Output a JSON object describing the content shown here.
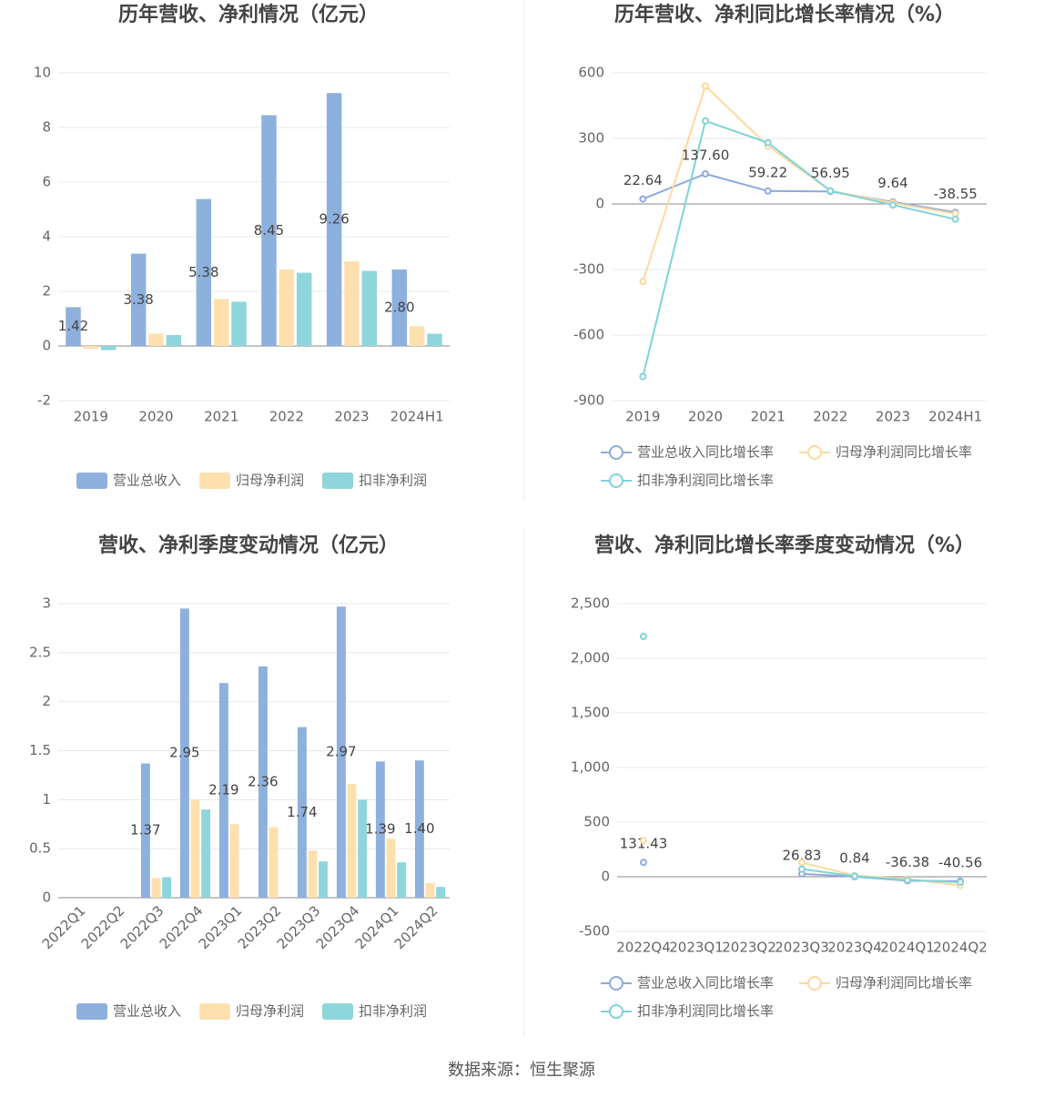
{
  "chart_data": [
    {
      "type": "bar",
      "title": "历年营收、净利情况（亿元）",
      "categories": [
        "2019",
        "2020",
        "2021",
        "2022",
        "2023",
        "2024H1"
      ],
      "ylim": [
        -2,
        10
      ],
      "yticks": [
        -2,
        0,
        2,
        4,
        6,
        8,
        10
      ],
      "grid": true,
      "series": [
        {
          "name": "营业总收入",
          "color": "#8eb0dd",
          "values": [
            1.42,
            3.38,
            5.38,
            8.45,
            9.26,
            2.8
          ],
          "value_labels": [
            "1.42",
            "3.38",
            "5.38",
            "8.45",
            "9.26",
            "2.80"
          ]
        },
        {
          "name": "归母净利润",
          "color": "#fde0ae",
          "values": [
            -0.1,
            0.45,
            1.72,
            2.8,
            3.1,
            0.72
          ]
        },
        {
          "name": "扣非净利润",
          "color": "#8ed6db",
          "values": [
            -0.15,
            0.4,
            1.62,
            2.68,
            2.75,
            0.45
          ]
        }
      ]
    },
    {
      "type": "line",
      "title": "历年营收、净利同比增长率情况（%）",
      "categories": [
        "2019",
        "2020",
        "2021",
        "2022",
        "2023",
        "2024H1"
      ],
      "ylim": [
        -900,
        600
      ],
      "yticks": [
        -900,
        -600,
        -300,
        0,
        300,
        600
      ],
      "grid": true,
      "series": [
        {
          "name": "营业总收入同比增长率",
          "color": "#8eaade",
          "values": [
            22.64,
            137.6,
            59.22,
            56.95,
            9.64,
            -38.55
          ],
          "value_labels": [
            "22.64",
            "137.60",
            "59.22",
            "56.95",
            "9.64",
            "-38.55"
          ]
        },
        {
          "name": "归母净利润同比增长率",
          "color": "#fdd99e",
          "values": [
            -355,
            540,
            265,
            60,
            5,
            -45
          ]
        },
        {
          "name": "扣非净利润同比增长率",
          "color": "#7fd3d8",
          "values": [
            -790,
            380,
            280,
            60,
            -5,
            -70
          ]
        }
      ]
    },
    {
      "type": "bar",
      "title": "营收、净利季度变动情况（亿元）",
      "categories": [
        "2022Q1",
        "2022Q2",
        "2022Q3",
        "2022Q4",
        "2023Q1",
        "2023Q2",
        "2023Q3",
        "2023Q4",
        "2024Q1",
        "2024Q2"
      ],
      "ylim": [
        0,
        3
      ],
      "yticks": [
        0,
        0.5,
        1,
        1.5,
        2,
        2.5,
        3
      ],
      "grid": true,
      "series": [
        {
          "name": "营业总收入",
          "color": "#8eb0dd",
          "values": [
            null,
            null,
            1.37,
            2.95,
            2.19,
            2.36,
            1.74,
            2.97,
            1.39,
            1.4
          ],
          "value_labels": [
            null,
            null,
            "1.37",
            "2.95",
            "2.19",
            "2.36",
            "1.74",
            "2.97",
            "1.39",
            "1.40"
          ]
        },
        {
          "name": "归母净利润",
          "color": "#fde0ae",
          "values": [
            null,
            null,
            0.2,
            1.0,
            0.75,
            0.72,
            0.48,
            1.16,
            0.6,
            0.15
          ]
        },
        {
          "name": "扣非净利润",
          "color": "#8ed6db",
          "values": [
            null,
            null,
            0.21,
            0.9,
            null,
            null,
            0.37,
            1.0,
            0.36,
            0.11
          ]
        }
      ]
    },
    {
      "type": "line",
      "title": "营收、净利同比增长率季度变动情况（%）",
      "categories": [
        "2022Q4",
        "2023Q1",
        "2023Q2",
        "2023Q3",
        "2023Q4",
        "2024Q1",
        "2024Q2"
      ],
      "ylim": [
        -500,
        2500
      ],
      "yticks": [
        -500,
        0,
        500,
        {
          "value": 1000,
          "label": "1,000"
        },
        {
          "value": 1500,
          "label": "1,500"
        },
        {
          "value": 2000,
          "label": "2,000"
        },
        {
          "value": 2500,
          "label": "2,500"
        }
      ],
      "grid": true,
      "series": [
        {
          "name": "营业总收入同比增长率",
          "color": "#8eaade",
          "values": [
            131.43,
            null,
            null,
            26.83,
            0.84,
            -36.38,
            -40.56
          ],
          "value_labels": [
            "131.43",
            null,
            null,
            "26.83",
            "0.84",
            "-36.38",
            "-40.56"
          ]
        },
        {
          "name": "归母净利润同比增长率",
          "color": "#fdd99e",
          "values": [
            330,
            null,
            null,
            130,
            10,
            -20,
            -80
          ]
        },
        {
          "name": "扣非净利润同比增长率",
          "color": "#7fd3d8",
          "values": [
            2200,
            null,
            null,
            70,
            5,
            -30,
            -50
          ]
        }
      ]
    }
  ],
  "source": "数据来源：恒生聚源"
}
